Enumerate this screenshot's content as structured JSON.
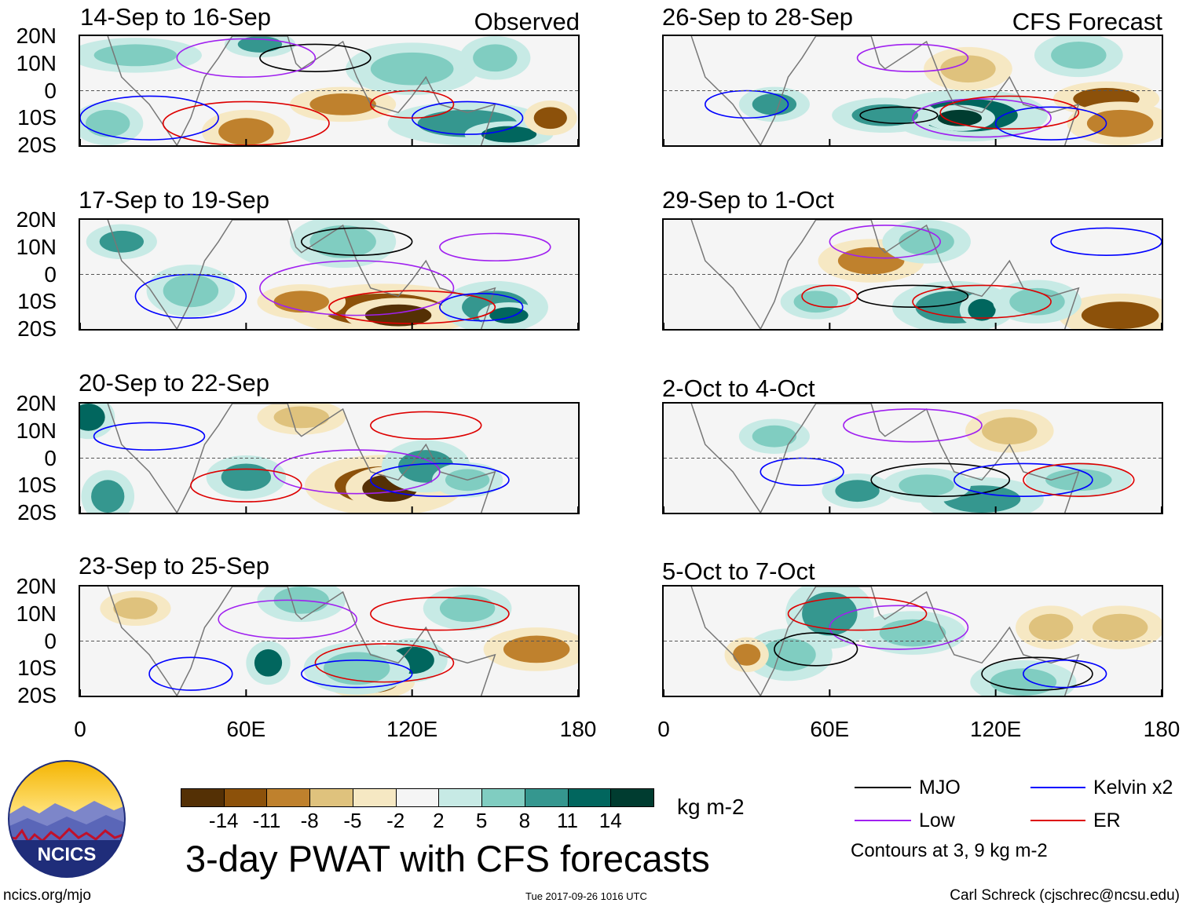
{
  "chart_data": {
    "type": "heatmap",
    "title": "3-day PWAT with CFS forecasts",
    "variable": "PWAT anomaly",
    "units": "kg m-2",
    "xlim": [
      0,
      180
    ],
    "ylim": [
      -20,
      20
    ],
    "x_ticks": [
      "0",
      "60E",
      "120E",
      "180"
    ],
    "y_ticks": [
      "20N",
      "10N",
      "0",
      "10S",
      "20S"
    ],
    "columns": [
      {
        "header": "Observed",
        "panels": [
          "14-Sep to 16-Sep",
          "17-Sep to 19-Sep",
          "20-Sep to 22-Sep",
          "23-Sep to 25-Sep"
        ]
      },
      {
        "header": "CFS Forecast",
        "panels": [
          "26-Sep to 28-Sep",
          "29-Sep to 1-Oct",
          "2-Oct to 4-Oct",
          "5-Oct to 7-Oct"
        ]
      }
    ],
    "colorbar": {
      "ticks": [
        "-14",
        "-11",
        "-8",
        "-5",
        "-2",
        "2",
        "5",
        "8",
        "11",
        "14"
      ],
      "colors": [
        "#543005",
        "#8c510a",
        "#bf812d",
        "#dfc27d",
        "#f6e8c3",
        "#f5f5f5",
        "#c7eae5",
        "#80cdc1",
        "#35978f",
        "#01665e",
        "#003c30"
      ],
      "units": "kg m-2"
    },
    "legend": [
      {
        "label": "MJO",
        "color": "#000000"
      },
      {
        "label": "Kelvin x2",
        "color": "#0000ff"
      },
      {
        "label": "Low",
        "color": "#a020f0"
      },
      {
        "label": "ER",
        "color": "#dd0000"
      }
    ],
    "contour_note": "Contours at 3, 9 kg m-2"
  },
  "logo": {
    "text": "NCICS"
  },
  "footer": {
    "left": "ncics.org/mjo",
    "center": "Tue 2017-09-26 1016 UTC",
    "right": "Carl Schreck (cjschrec@ncsu.edu)"
  }
}
